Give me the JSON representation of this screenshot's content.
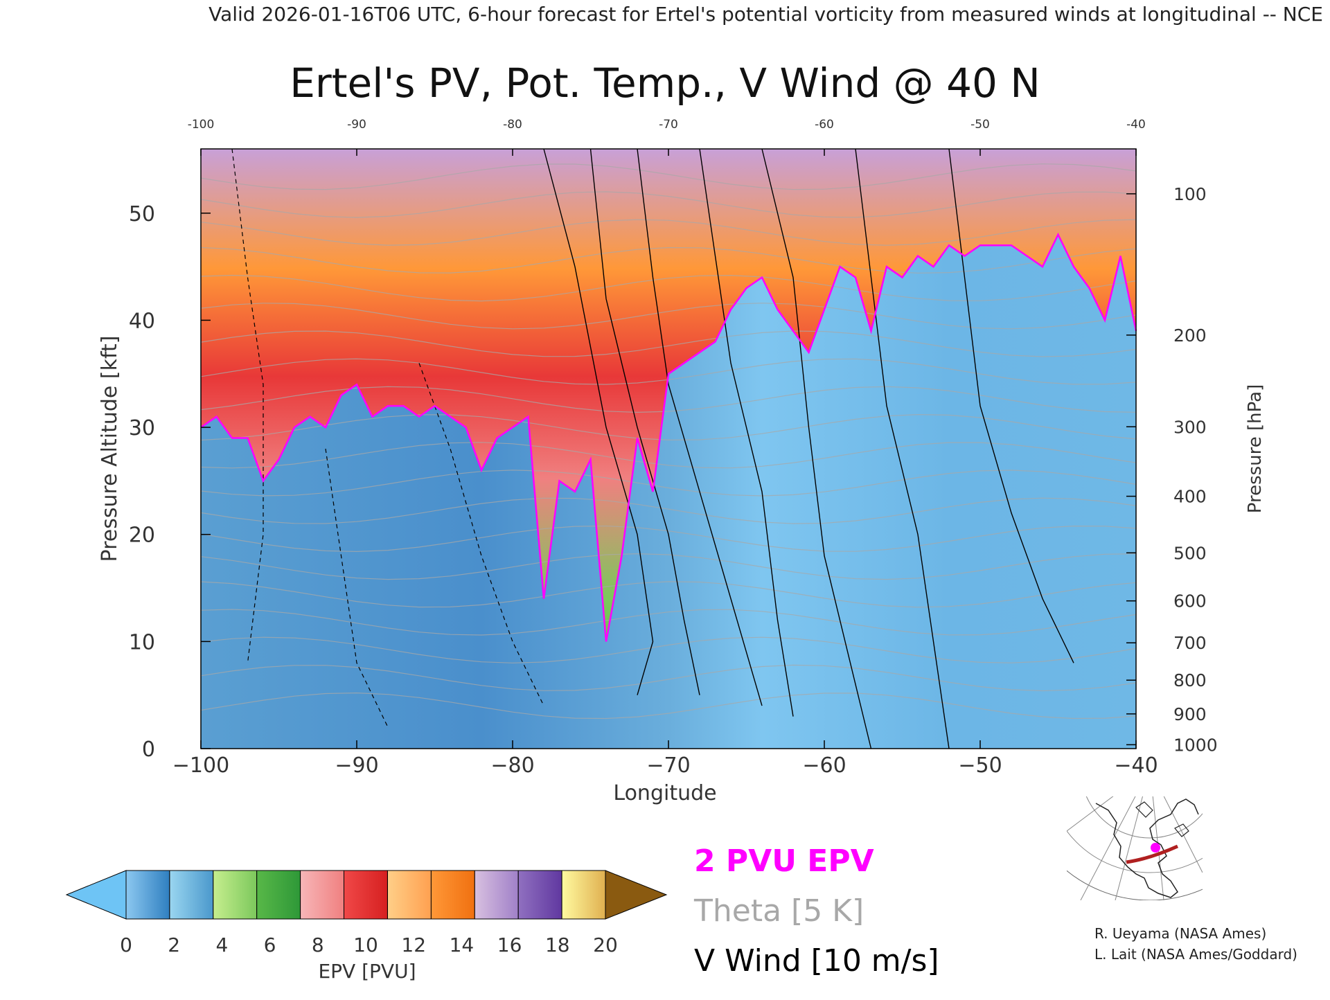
{
  "header": {
    "valid_line": "Valid 2026-01-16T06 UTC, 6-hour forecast for Ertel's potential vorticity from measured winds at longitudinal -- NCE"
  },
  "chart_data": {
    "type": "heatmap",
    "title": "Ertel's PV, Pot. Temp., V Wind @ 40 N",
    "xlabel": "Longitude",
    "ylabel": "Pressure Altitude [kft]",
    "y2label": "Pressure [hPa]",
    "xlim": [
      -100,
      -40
    ],
    "ylim": [
      0,
      56
    ],
    "x_ticks": [
      -100,
      -90,
      -80,
      -70,
      -60,
      -50,
      -40
    ],
    "x_tick_labels": [
      "−100",
      "−90",
      "−80",
      "−70",
      "−60",
      "−50",
      "−40"
    ],
    "top_ticks": [
      -100,
      -90,
      -80,
      -70,
      -60,
      -50,
      -40
    ],
    "top_tick_labels": [
      "-100",
      "-90",
      "-80",
      "-70",
      "-60",
      "-50",
      "-40"
    ],
    "y_ticks": [
      0,
      10,
      20,
      30,
      40,
      50
    ],
    "y_tick_labels": [
      "0",
      "10",
      "20",
      "30",
      "40",
      "50"
    ],
    "pressure_ticks": [
      {
        "hpa": 100,
        "label": "100"
      },
      {
        "hpa": 200,
        "label": "200"
      },
      {
        "hpa": 300,
        "label": "300"
      },
      {
        "hpa": 400,
        "label": "400"
      },
      {
        "hpa": 500,
        "label": "500"
      },
      {
        "hpa": 600,
        "label": "600"
      },
      {
        "hpa": 700,
        "label": "700"
      },
      {
        "hpa": 800,
        "label": "800"
      },
      {
        "hpa": 900,
        "label": "900"
      },
      {
        "hpa": 1000,
        "label": "1000"
      }
    ],
    "tropopause": {
      "lon": [
        -100,
        -99,
        -98,
        -97,
        -96,
        -95,
        -94,
        -93,
        -92,
        -91,
        -90,
        -89,
        -88,
        -87,
        -86,
        -85,
        -84,
        -83,
        -82,
        -81,
        -80,
        -79,
        -78,
        -77,
        -76,
        -75,
        -74,
        -73,
        -72,
        -71,
        -70,
        -69,
        -68,
        -67,
        -66,
        -65,
        -64,
        -63,
        -62,
        -61,
        -60,
        -59,
        -58,
        -57,
        -56,
        -55,
        -54,
        -53,
        -52,
        -51,
        -50,
        -49,
        -48,
        -47,
        -46,
        -45,
        -44,
        -43,
        -42,
        -41,
        -40
      ],
      "kft": [
        30,
        31,
        29,
        29,
        25,
        27,
        30,
        31,
        30,
        33,
        34,
        31,
        32,
        32,
        31,
        32,
        31,
        30,
        26,
        29,
        30,
        31,
        14,
        25,
        24,
        27,
        10,
        18,
        29,
        24,
        35,
        36,
        37,
        38,
        41,
        43,
        44,
        41,
        39,
        37,
        41,
        45,
        44,
        39,
        45,
        44,
        46,
        45,
        47,
        46,
        47,
        47,
        47,
        46,
        45,
        48,
        45,
        43,
        40,
        46,
        39
      ]
    },
    "colorbar": {
      "label": "EPV [PVU]",
      "tick_labels": [
        "0",
        "2",
        "4",
        "6",
        "8",
        "10",
        "12",
        "14",
        "16",
        "18",
        "20"
      ],
      "under_color": "#6ec4f5",
      "over_color": "#8a5a10",
      "bins": [
        [
          "#8cc8f0",
          "#2f7fc0"
        ],
        [
          "#9ad6f0",
          "#4a98cc"
        ],
        [
          "#c6ee8e",
          "#7cc85c"
        ],
        [
          "#58b848",
          "#2e9838"
        ],
        [
          "#f7b6b8",
          "#f08080"
        ],
        [
          "#f04848",
          "#d62020"
        ],
        [
          "#ffcf88",
          "#ffa050"
        ],
        [
          "#ff9838",
          "#f07010"
        ],
        [
          "#d8c0e0",
          "#a080c8"
        ],
        [
          "#9070c0",
          "#6038a0"
        ],
        [
          "#fffaa0",
          "#e0b050"
        ]
      ]
    }
  },
  "legend": {
    "epv": "2 PVU EPV",
    "theta": "Theta [5 K]",
    "vwind": "V Wind [10 m/s]",
    "epv_color": "#ff00ff",
    "theta_color": "#a8a8a8",
    "vwind_color": "#000000"
  },
  "credits": {
    "line1": "R. Ueyama (NASA Ames)",
    "line2": "L. Lait (NASA Ames/Goddard)"
  },
  "inset_map": {
    "icon": "globe-map-icon",
    "marker_color": "#ff00ff",
    "section_color": "#b02020"
  }
}
